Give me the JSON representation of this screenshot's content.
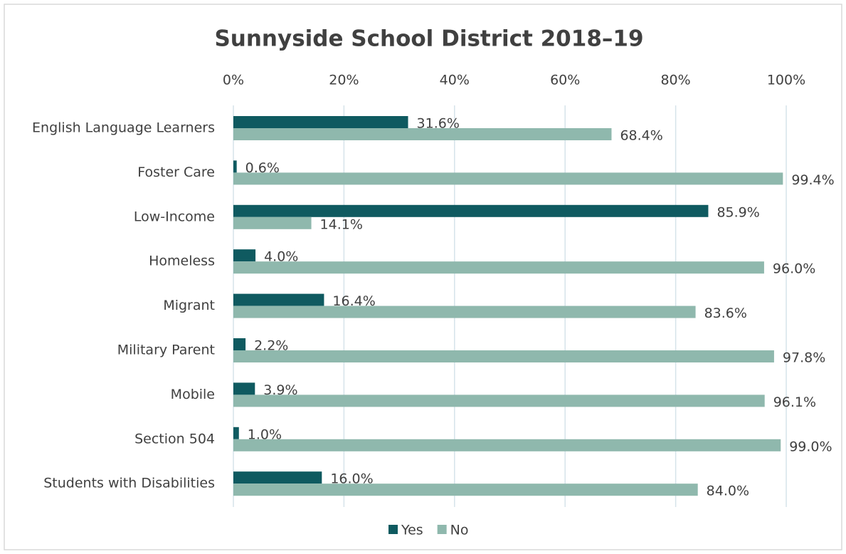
{
  "chart_data": {
    "type": "hbar",
    "title": "Sunnyside School District 2018–19",
    "categories": [
      "English Language Learners",
      "Foster Care",
      "Low-Income",
      "Homeless",
      "Migrant",
      "Military Parent",
      "Mobile",
      "Section 504",
      "Students with Disabilities"
    ],
    "series": [
      {
        "name": "Yes",
        "color": "#0f5a60",
        "values": [
          31.6,
          0.6,
          85.9,
          4.0,
          16.4,
          2.2,
          3.9,
          1.0,
          16.0
        ],
        "value_labels": [
          "31.6%",
          "0.6%",
          "85.9%",
          "4.0%",
          "16.4%",
          "2.2%",
          "3.9%",
          "1.0%",
          "16.0%"
        ]
      },
      {
        "name": "No",
        "color": "#8fb8ad",
        "values": [
          68.4,
          99.4,
          14.1,
          96.0,
          83.6,
          97.8,
          96.1,
          99.0,
          84.0
        ],
        "value_labels": [
          "68.4%",
          "99.4%",
          "14.1%",
          "96.0%",
          "83.6%",
          "97.8%",
          "96.1%",
          "99.0%",
          "84.0%"
        ]
      }
    ],
    "xlim": [
      0,
      100
    ],
    "xticks": [
      {
        "value": 0,
        "label": "0%"
      },
      {
        "value": 20,
        "label": "20%"
      },
      {
        "value": 40,
        "label": "40%"
      },
      {
        "value": 60,
        "label": "60%"
      },
      {
        "value": 80,
        "label": "80%"
      },
      {
        "value": 100,
        "label": "100%"
      }
    ],
    "grid": true,
    "legend": "bottom"
  }
}
